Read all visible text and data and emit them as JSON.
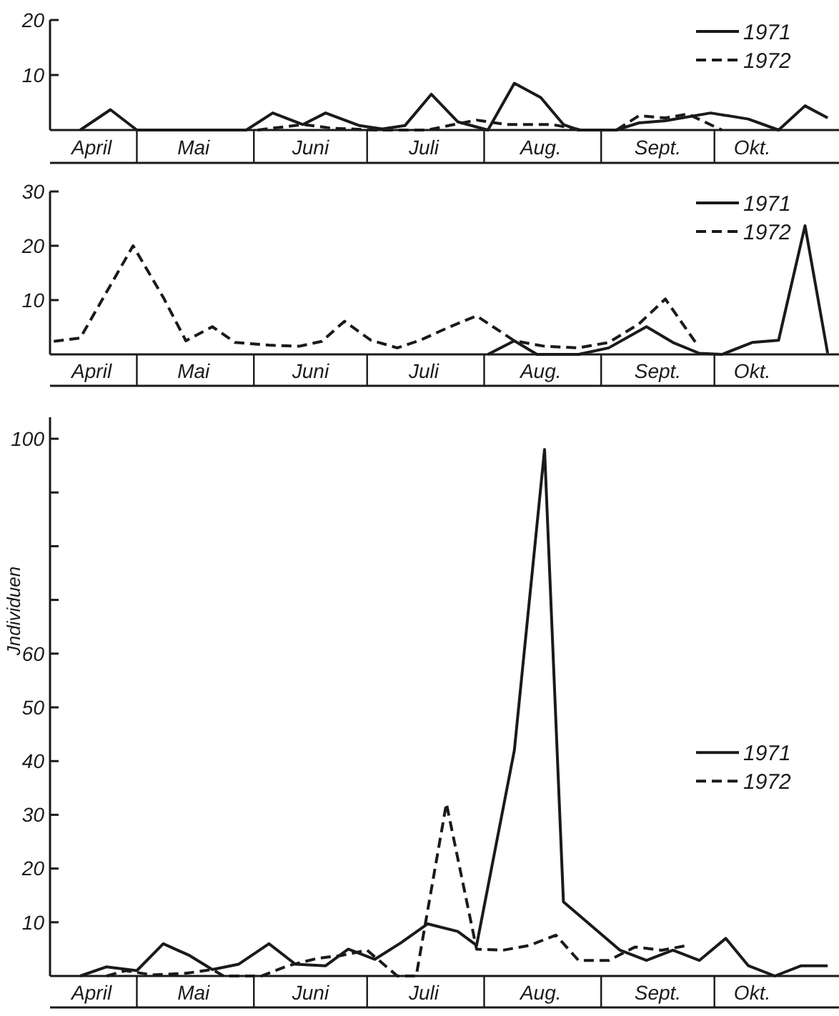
{
  "chart_data": [
    {
      "type": "line",
      "xlim": [
        "--04-08",
        "--11-03"
      ],
      "xticks": [
        {
          "value": "--04-19",
          "label": "April"
        },
        {
          "value": "--05-16",
          "label": "Mai"
        },
        {
          "value": "--06-16",
          "label": "Juni"
        },
        {
          "value": "--07-16",
          "label": "Juli"
        },
        {
          "value": "--08-16",
          "label": "Aug."
        },
        {
          "value": "--09-16",
          "label": "Sept."
        },
        {
          "value": "--10-11",
          "label": "Okt."
        }
      ],
      "ylim": [
        0,
        20
      ],
      "yticks": [
        10,
        20
      ],
      "legend": "top right",
      "series": [
        {
          "name": "1971",
          "color": "#1a1a1a",
          "line_style": "solid",
          "x": [
            "--04-16",
            "--04-24",
            "--05-01",
            "--05-30",
            "--06-06",
            "--06-14",
            "--06-20",
            "--06-29",
            "--07-05",
            "--07-11",
            "--07-18",
            "--07-25",
            "--08-02",
            "--08-09",
            "--08-16",
            "--08-22",
            "--08-26",
            "--09-05",
            "--09-11",
            "--09-18",
            "--09-30",
            "--10-10",
            "--10-18",
            "--10-25",
            "--10-31"
          ],
          "values": [
            0,
            3.7,
            0,
            0,
            3.1,
            1,
            3.1,
            0.8,
            0.2,
            0.8,
            6.5,
            1.5,
            0,
            8.5,
            5.9,
            1,
            0,
            0,
            1.3,
            1.7,
            3.1,
            2,
            0,
            4.4,
            2.2
          ]
        },
        {
          "name": "1972",
          "color": "#1a1a1a",
          "line_style": "dashed",
          "x": [
            "--06-02",
            "--06-08",
            "--06-14",
            "--06-22",
            "--07-04",
            "--07-17",
            "--07-24",
            "--07-30",
            "--08-07",
            "--08-19",
            "--08-27",
            "--09-05",
            "--09-11",
            "--09-18",
            "--09-24",
            "--10-03"
          ],
          "values": [
            0,
            0.5,
            1,
            0.3,
            0,
            0,
            1,
            1.8,
            1,
            1,
            0,
            0,
            2.6,
            2.2,
            2.9,
            0
          ]
        }
      ]
    },
    {
      "type": "line",
      "xlim": [
        "--04-08",
        "--11-03"
      ],
      "xticks": [
        {
          "value": "--04-19",
          "label": "April"
        },
        {
          "value": "--05-16",
          "label": "Mai"
        },
        {
          "value": "--06-16",
          "label": "Juni"
        },
        {
          "value": "--07-16",
          "label": "Juli"
        },
        {
          "value": "--08-16",
          "label": "Aug."
        },
        {
          "value": "--09-16",
          "label": "Sept."
        },
        {
          "value": "--10-11",
          "label": "Okt."
        }
      ],
      "ylim": [
        0,
        30
      ],
      "yticks": [
        10,
        20,
        30
      ],
      "legend": "top right",
      "series": [
        {
          "name": "1971",
          "color": "#1a1a1a",
          "line_style": "solid",
          "x": [
            "--08-02",
            "--08-09",
            "--08-15",
            "--08-26",
            "--09-03",
            "--09-13",
            "--09-20",
            "--09-27",
            "--10-03",
            "--10-11",
            "--10-18",
            "--10-25",
            "--10-31"
          ],
          "values": [
            0,
            2.5,
            0,
            0,
            1.2,
            5.1,
            2.2,
            0.2,
            0,
            2.2,
            2.6,
            23.7,
            0.2
          ]
        },
        {
          "name": "1972",
          "color": "#1a1a1a",
          "line_style": "dashed",
          "x": [
            "--04-09",
            "--04-16",
            "--04-23",
            "--04-30",
            "--05-08",
            "--05-14",
            "--05-21",
            "--05-27",
            "--06-05",
            "--06-13",
            "--06-19",
            "--06-25",
            "--07-02",
            "--07-09",
            "--07-15",
            "--07-23",
            "--07-30",
            "--08-09",
            "--08-17",
            "--08-26",
            "--09-03",
            "--09-11",
            "--09-18",
            "--09-26"
          ],
          "values": [
            2.4,
            3,
            11.5,
            20,
            10.5,
            2.5,
            5.1,
            2.2,
            1.7,
            1.5,
            2.4,
            6.1,
            2.6,
            1.2,
            2.6,
            5.1,
            7.1,
            2.5,
            1.5,
            1.2,
            2.2,
            5.6,
            10.2,
            2.2
          ]
        }
      ]
    },
    {
      "type": "line",
      "ylabel": "Jndividuen",
      "xlim": [
        "--04-08",
        "--11-03"
      ],
      "xticks": [
        {
          "value": "--04-19",
          "label": "April"
        },
        {
          "value": "--05-16",
          "label": "Mai"
        },
        {
          "value": "--06-16",
          "label": "Juni"
        },
        {
          "value": "--07-16",
          "label": "Juli"
        },
        {
          "value": "--08-16",
          "label": "Aug."
        },
        {
          "value": "--09-16",
          "label": "Sept."
        },
        {
          "value": "--10-11",
          "label": "Okt."
        }
      ],
      "ylim": [
        0,
        104
      ],
      "yticks": [
        10,
        20,
        30,
        40,
        50,
        60,
        {
          "value": 70,
          "label": null
        },
        {
          "value": 80,
          "label": null
        },
        {
          "value": 90,
          "label": null
        },
        100
      ],
      "legend": "right",
      "series": [
        {
          "name": "1971",
          "color": "#1a1a1a",
          "line_style": "solid",
          "x": [
            "--04-16",
            "--04-23",
            "--05-01",
            "--05-08",
            "--05-15",
            "--05-21",
            "--05-28",
            "--06-05",
            "--06-12",
            "--06-20",
            "--06-26",
            "--07-03",
            "--07-10",
            "--07-17",
            "--07-25",
            "--07-30",
            "--08-09",
            "--08-17",
            "--08-22",
            "--09-06",
            "--09-13",
            "--09-20",
            "--09-27",
            "--10-04",
            "--10-10",
            "--10-17",
            "--10-24",
            "--10-31"
          ],
          "values": [
            0,
            1.7,
            1,
            6,
            3.8,
            1.2,
            2.2,
            6,
            2.2,
            1.9,
            5,
            3.1,
            6.2,
            9.7,
            8.3,
            5.7,
            42,
            98,
            13.8,
            4.8,
            2.9,
            4.8,
            2.9,
            7,
            1.9,
            0,
            1.9,
            1.9
          ]
        },
        {
          "name": "1972",
          "color": "#1a1a1a",
          "line_style": "dashed",
          "x": [
            "--04-23",
            "--04-28",
            "--05-05",
            "--05-14",
            "--05-21",
            "--05-24",
            "--06-03",
            "--06-10",
            "--06-18",
            "--06-24",
            "--07-01",
            "--07-09",
            "--07-14",
            "--07-22",
            "--07-30",
            "--08-06",
            "--08-13",
            "--08-20",
            "--08-26",
            "--09-03",
            "--09-10",
            "--09-17",
            "--09-24"
          ],
          "values": [
            0,
            1,
            0.2,
            0.5,
            1.2,
            0,
            0,
            1.9,
            3.3,
            3.8,
            4.8,
            0,
            0,
            32.1,
            5,
            4.8,
            5.7,
            7.6,
            2.9,
            2.9,
            5.4,
            4.8,
            5.7
          ]
        }
      ]
    }
  ]
}
